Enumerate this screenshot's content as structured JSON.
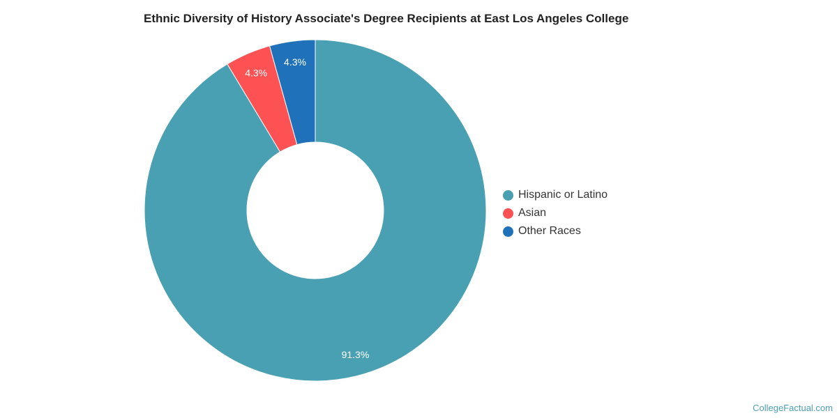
{
  "chart_data": {
    "type": "pie",
    "title": "Ethnic Diversity of History Associate's Degree Recipients at East Los Angeles College",
    "categories": [
      "Hispanic or Latino",
      "Asian",
      "Other Races"
    ],
    "values": [
      91.3,
      4.3,
      4.3
    ],
    "value_labels": [
      "91.3%",
      "4.3%",
      "4.3%"
    ],
    "colors": [
      "#4aa0b3",
      "#fc5254",
      "#1f72ba"
    ],
    "donut": true,
    "legend_placement": "right"
  },
  "legend": [
    {
      "label": "Hispanic or Latino",
      "color": "#4aa0b3"
    },
    {
      "label": "Asian",
      "color": "#fc5254"
    },
    {
      "label": "Other Races",
      "color": "#1f72ba"
    }
  ],
  "credit": "CollegeFactual.com"
}
